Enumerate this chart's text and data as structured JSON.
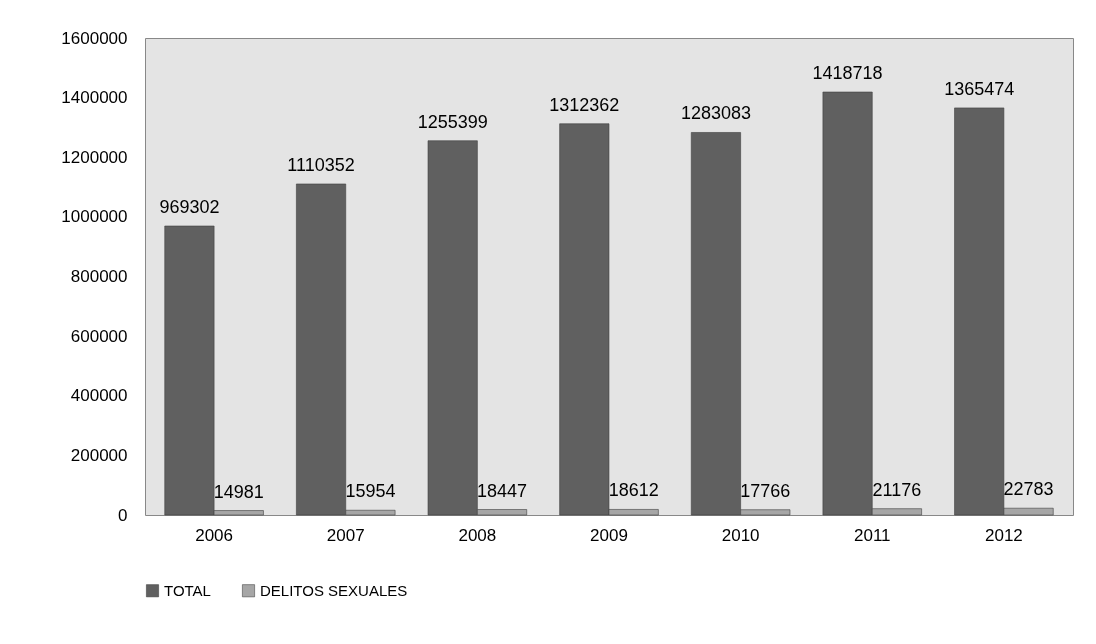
{
  "chart_data": {
    "type": "bar",
    "categories": [
      "2006",
      "2007",
      "2008",
      "2009",
      "2010",
      "2011",
      "2012"
    ],
    "series": [
      {
        "name": "TOTAL",
        "color": "#606060",
        "values": [
          969302,
          1110352,
          1255399,
          1312362,
          1283083,
          1418718,
          1365474
        ]
      },
      {
        "name": "DELITOS SEXUALES",
        "color": "#a6a6a6",
        "values": [
          14981,
          15954,
          18447,
          18612,
          17766,
          21176,
          22783
        ]
      }
    ],
    "ylim": [
      0,
      1600000
    ],
    "yticks": [
      0,
      200000,
      400000,
      600000,
      800000,
      1000000,
      1200000,
      1400000,
      1600000
    ],
    "data_labels": true,
    "legend": "bottom",
    "grid": false
  }
}
